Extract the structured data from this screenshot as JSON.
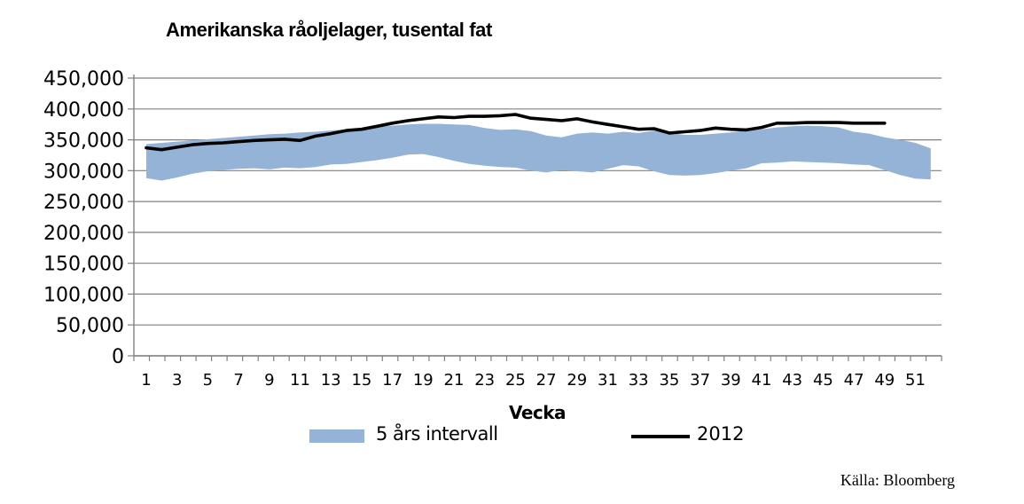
{
  "title": "Amerikanska råoljelager, tusental fat",
  "source": "Källa: Bloomberg",
  "colors": {
    "band": "#95B3D7",
    "line": "#000000",
    "grid": "#808080",
    "axis": "#808080",
    "text": "#000000",
    "background": "#ffffff"
  },
  "chart_data": {
    "type": "area",
    "title": "Amerikanska råoljelager, tusental fat",
    "xlabel": "Vecka",
    "ylabel": "",
    "ylim": [
      0,
      450000
    ],
    "y_tick_step": 50000,
    "grid": true,
    "legend_position": "bottom",
    "y_ticks": [
      {
        "value": 0,
        "label": "0"
      },
      {
        "value": 50000,
        "label": "50,000"
      },
      {
        "value": 100000,
        "label": "100,000"
      },
      {
        "value": 150000,
        "label": "150,000"
      },
      {
        "value": 200000,
        "label": "200,000"
      },
      {
        "value": 250000,
        "label": "250,000"
      },
      {
        "value": 300000,
        "label": "300,000"
      },
      {
        "value": 350000,
        "label": "350,000"
      },
      {
        "value": 400000,
        "label": "400,000"
      },
      {
        "value": 450000,
        "label": "450,000"
      }
    ],
    "x": [
      1,
      2,
      3,
      4,
      5,
      6,
      7,
      8,
      9,
      10,
      11,
      12,
      13,
      14,
      15,
      16,
      17,
      18,
      19,
      20,
      21,
      22,
      23,
      24,
      25,
      26,
      27,
      28,
      29,
      30,
      31,
      32,
      33,
      34,
      35,
      36,
      37,
      38,
      39,
      40,
      41,
      42,
      43,
      44,
      45,
      46,
      47,
      48,
      49,
      50,
      51,
      52
    ],
    "x_tick_labels": [
      "1",
      "3",
      "5",
      "7",
      "9",
      "11",
      "13",
      "15",
      "17",
      "19",
      "21",
      "23",
      "25",
      "27",
      "29",
      "31",
      "33",
      "35",
      "37",
      "39",
      "41",
      "43",
      "45",
      "47",
      "49",
      "51"
    ],
    "series": [
      {
        "name": "5 års intervall",
        "type": "band",
        "color": "#95B3D7",
        "upper": [
          343000,
          345000,
          347000,
          349000,
          351000,
          353000,
          355000,
          357000,
          359000,
          360000,
          362000,
          363000,
          365000,
          367000,
          369000,
          371000,
          373000,
          375000,
          376000,
          376000,
          375000,
          374000,
          369000,
          366000,
          367000,
          364000,
          357000,
          354000,
          360000,
          362000,
          360000,
          363000,
          361000,
          365000,
          361000,
          358000,
          358000,
          360000,
          362000,
          365000,
          367000,
          370000,
          372000,
          373000,
          372000,
          370000,
          363000,
          360000,
          354000,
          350000,
          345000,
          336000
        ],
        "lower": [
          288000,
          284000,
          289000,
          295000,
          299000,
          301000,
          303000,
          304000,
          302000,
          305000,
          304000,
          306000,
          310000,
          311000,
          314000,
          317000,
          321000,
          326000,
          327000,
          322000,
          316000,
          311000,
          308000,
          306000,
          305000,
          300000,
          297000,
          301000,
          299000,
          297000,
          303000,
          309000,
          307000,
          299000,
          293000,
          292000,
          293000,
          296000,
          300000,
          304000,
          312000,
          313000,
          315000,
          314000,
          313000,
          312000,
          310000,
          309000,
          301000,
          293000,
          287000,
          286000
        ]
      },
      {
        "name": "2012",
        "type": "line",
        "color": "#000000",
        "values": [
          337000,
          334000,
          338000,
          342000,
          344000,
          345000,
          347000,
          349000,
          350000,
          351000,
          349000,
          356000,
          360000,
          365000,
          367000,
          372000,
          377000,
          381000,
          384000,
          387000,
          386000,
          388000,
          388000,
          389000,
          391000,
          385000,
          383000,
          381000,
          384000,
          379000,
          375000,
          371000,
          367000,
          368000,
          361000,
          363000,
          365000,
          369000,
          367000,
          366000,
          370000,
          377000,
          377000,
          378000,
          378000,
          378000,
          377000,
          377000,
          377000,
          null,
          null,
          null
        ]
      }
    ]
  },
  "legend": {
    "band_label": "5 års intervall",
    "line_label": "2012"
  }
}
